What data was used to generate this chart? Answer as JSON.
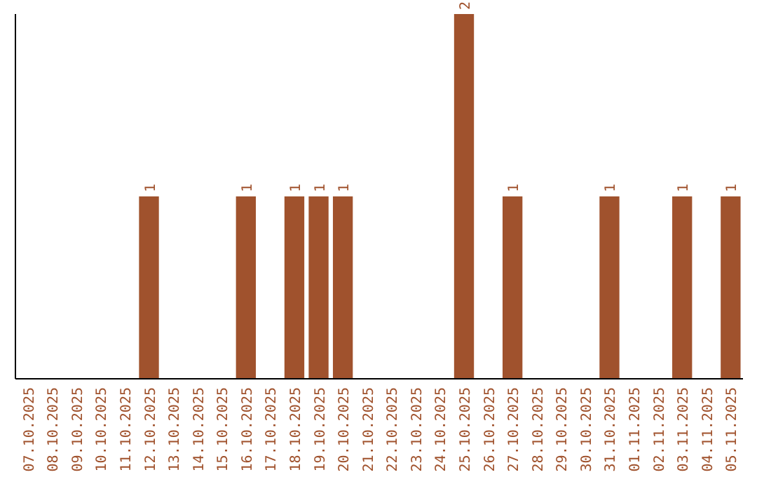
{
  "chart_data": {
    "type": "bar",
    "categories": [
      "07.10.2025",
      "08.10.2025",
      "09.10.2025",
      "10.10.2025",
      "11.10.2025",
      "12.10.2025",
      "13.10.2025",
      "14.10.2025",
      "15.10.2025",
      "16.10.2025",
      "17.10.2025",
      "18.10.2025",
      "19.10.2025",
      "20.10.2025",
      "21.10.2025",
      "22.10.2025",
      "23.10.2025",
      "24.10.2025",
      "25.10.2025",
      "26.10.2025",
      "27.10.2025",
      "28.10.2025",
      "29.10.2025",
      "30.10.2025",
      "31.10.2025",
      "01.11.2025",
      "02.11.2025",
      "03.11.2025",
      "04.11.2025",
      "05.11.2025"
    ],
    "values": [
      0,
      0,
      0,
      0,
      0,
      1,
      0,
      0,
      0,
      1,
      0,
      1,
      1,
      1,
      0,
      0,
      0,
      0,
      2,
      0,
      1,
      0,
      0,
      0,
      1,
      0,
      0,
      1,
      0,
      1
    ],
    "value_labels": [
      null,
      null,
      null,
      null,
      null,
      "1",
      null,
      null,
      null,
      "1",
      null,
      "1",
      "1",
      "1",
      null,
      null,
      null,
      null,
      "2",
      null,
      "1",
      null,
      null,
      null,
      "1",
      null,
      null,
      "1",
      null,
      "1"
    ],
    "color": "#a0522d",
    "tick_labels": "x"
  }
}
